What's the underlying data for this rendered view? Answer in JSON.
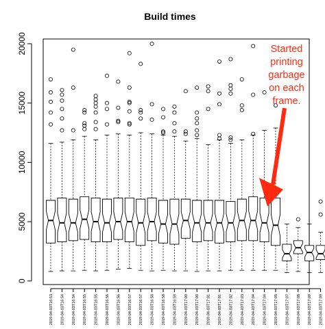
{
  "chart_data": {
    "type": "boxplot",
    "title": "Build times",
    "xlabel": "",
    "ylabel": "",
    "ylim": [
      -300,
      20400
    ],
    "yticks": [
      0,
      5000,
      10000,
      15000,
      20000
    ],
    "notched": true,
    "categories": [
      "2019-04-03T16:53",
      "2019-04-03T16:54",
      "2019-04-03T16:54",
      "2019-04-03T16:55",
      "2019-04-03T16:55",
      "2019-04-03T16:56",
      "2019-04-03T16:56",
      "2019-04-03T16:57",
      "2019-04-03T16:57",
      "2019-04-03T16:58",
      "2019-04-03T16:58",
      "2019-04-03T16:59",
      "2019-04-03T17:00",
      "2019-04-03T17:00",
      "2019-04-03T17:01",
      "2019-04-03T17:01",
      "2019-04-03T17:02",
      "2019-04-03T17:03",
      "2019-04-03T17:04",
      "2019-04-03T17:04",
      "2019-04-03T17:05",
      "2019-04-03T17:07",
      "2019-04-03T17:08",
      "2019-04-03T17:09",
      "2019-04-03T17:09"
    ],
    "boxes": [
      {
        "low": 800,
        "q1": 3200,
        "median": 5100,
        "q3": 6800,
        "high": 11600,
        "outliers": [
          13200,
          14200,
          15100,
          15900,
          17000
        ]
      },
      {
        "low": 850,
        "q1": 3300,
        "median": 4900,
        "q3": 7000,
        "high": 11700,
        "outliers": [
          12700,
          13700,
          14500,
          15200,
          15700,
          16100
        ]
      },
      {
        "low": 850,
        "q1": 3400,
        "median": 4900,
        "q3": 6900,
        "high": 11900,
        "outliers": [
          12700,
          16300,
          19500
        ]
      },
      {
        "low": 900,
        "q1": 3500,
        "median": 5200,
        "q3": 7100,
        "high": 12200,
        "outliers": [
          12800,
          13100,
          13300,
          14200,
          14400
        ]
      },
      {
        "low": 850,
        "q1": 3300,
        "median": 5000,
        "q3": 7000,
        "high": 11900,
        "outliers": [
          12800,
          13400,
          14200,
          14700,
          15000,
          15300,
          15600
        ]
      },
      {
        "low": 900,
        "q1": 3300,
        "median": 4900,
        "q3": 6900,
        "high": 12300,
        "outliers": [
          13200,
          14500,
          15000,
          17300
        ]
      },
      {
        "low": 1000,
        "q1": 3500,
        "median": 5000,
        "q3": 7000,
        "high": 12400,
        "outliers": [
          13400,
          13500,
          14600,
          16800
        ]
      },
      {
        "low": 1050,
        "q1": 3300,
        "median": 5000,
        "q3": 7000,
        "high": 12300,
        "outliers": [
          13200,
          13300,
          14300,
          15000,
          15100,
          16300,
          19200
        ]
      },
      {
        "low": 900,
        "q1": 3000,
        "median": 4900,
        "q3": 6900,
        "high": 12500,
        "outliers": [
          13700,
          14200,
          14400,
          18300
        ]
      },
      {
        "low": 850,
        "q1": 3400,
        "median": 5000,
        "q3": 7000,
        "high": 12400,
        "outliers": [
          13600,
          14900,
          20000
        ]
      },
      {
        "low": 900,
        "q1": 3200,
        "median": 4800,
        "q3": 6800,
        "high": 12300,
        "outliers": [
          12500,
          12600,
          13800,
          14500
        ]
      },
      {
        "low": 850,
        "q1": 3100,
        "median": 4800,
        "q3": 6900,
        "high": 12200,
        "outliers": [
          12600,
          13300,
          14200,
          14700
        ]
      },
      {
        "low": 850,
        "q1": 3600,
        "median": 5100,
        "q3": 6900,
        "high": 11800,
        "outliers": [
          12400,
          12600,
          16000
        ]
      },
      {
        "low": 800,
        "q1": 3300,
        "median": 4900,
        "q3": 6800,
        "high": 12000,
        "outliers": [
          12300,
          12700,
          13300,
          13700,
          14200,
          16300
        ]
      },
      {
        "low": 850,
        "q1": 3400,
        "median": 4900,
        "q3": 6800,
        "high": 11500,
        "outliers": [
          14500,
          16000,
          16400
        ]
      },
      {
        "low": 850,
        "q1": 3200,
        "median": 4900,
        "q3": 6800,
        "high": 11900,
        "outliers": [
          12000,
          12300,
          14900,
          15800,
          18500
        ]
      },
      {
        "low": 900,
        "q1": 3300,
        "median": 4900,
        "q3": 6700,
        "high": 11600,
        "outliers": [
          11900,
          12100,
          15800,
          16200,
          16500,
          18700
        ]
      },
      {
        "low": 900,
        "q1": 3400,
        "median": 5100,
        "q3": 6900,
        "high": 11900,
        "outliers": [
          14400,
          14800,
          17000
        ]
      },
      {
        "low": 900,
        "q1": 3400,
        "median": 5100,
        "q3": 7100,
        "high": 12300,
        "outliers": [
          12400,
          15700,
          19800
        ]
      },
      {
        "low": 900,
        "q1": 3300,
        "median": 4900,
        "q3": 7000,
        "high": 12700,
        "outliers": [
          15900
        ]
      },
      {
        "low": 900,
        "q1": 3000,
        "median": 4700,
        "q3": 7000,
        "high": 12900,
        "outliers": [
          14800
        ]
      },
      {
        "low": 700,
        "q1": 1700,
        "median": 2300,
        "q3": 3100,
        "high": 4800,
        "outliers": []
      },
      {
        "low": 800,
        "q1": 2300,
        "median": 2800,
        "q3": 3400,
        "high": 4500,
        "outliers": [
          5200
        ]
      },
      {
        "low": 700,
        "q1": 1700,
        "median": 2400,
        "q3": 3000,
        "high": 4800,
        "outliers": []
      },
      {
        "low": 700,
        "q1": 1800,
        "median": 2300,
        "q3": 3000,
        "high": 4100,
        "outliers": [
          5600,
          6700
        ]
      }
    ],
    "annotation": {
      "lines": [
        "Started",
        "printing",
        "garbage",
        "on each",
        "frame."
      ],
      "color": "#ff2a10",
      "arrow": "pointing down toward the last four boxes"
    }
  }
}
